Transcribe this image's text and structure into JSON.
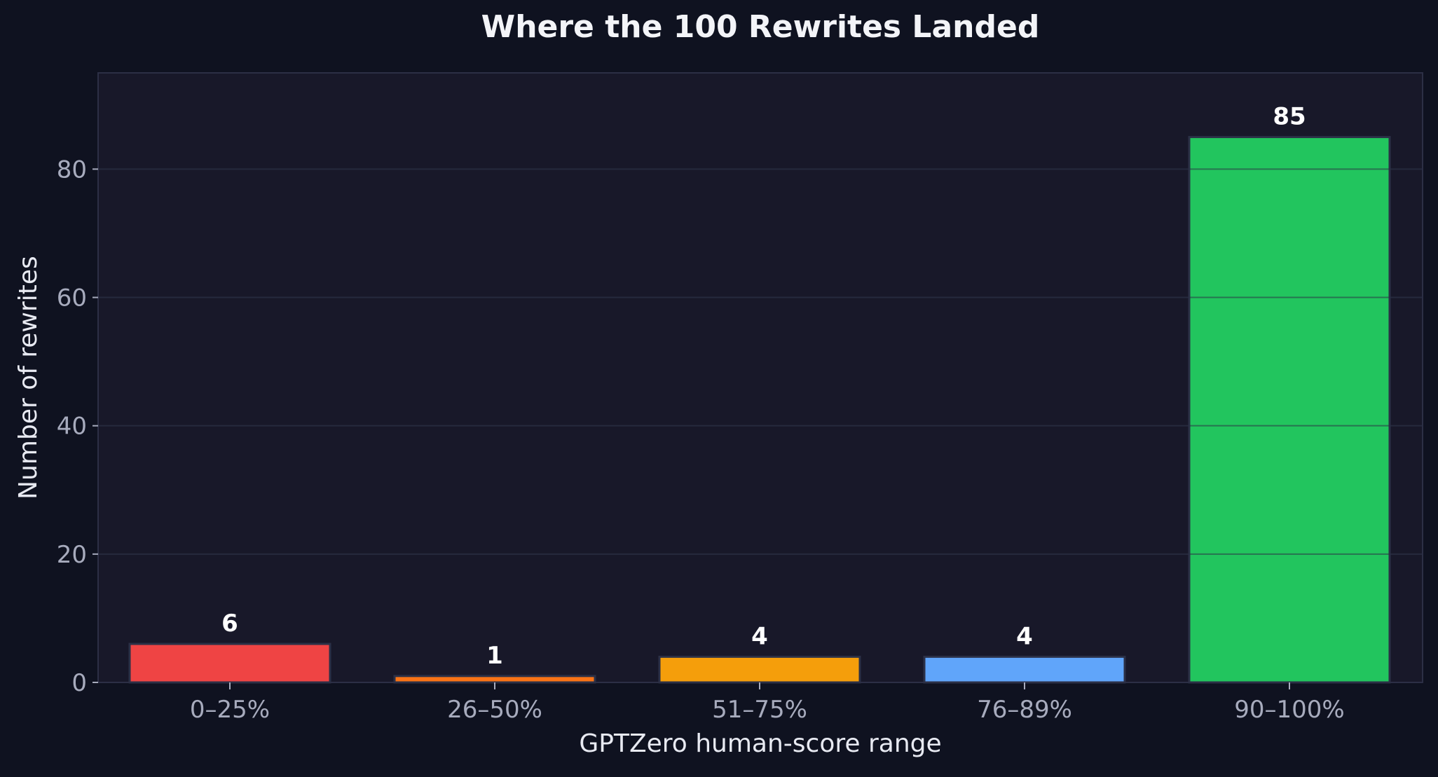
{
  "chart_data": {
    "type": "bar",
    "title": "Where the 100 Rewrites Landed",
    "xlabel": "GPTZero human-score range",
    "ylabel": "Number of rewrites",
    "categories": [
      "0–25%",
      "26–50%",
      "51–75%",
      "76–89%",
      "90–100%"
    ],
    "values": [
      6,
      1,
      4,
      4,
      85
    ],
    "data_labels": [
      "6",
      "1",
      "4",
      "4",
      "85"
    ],
    "bar_colors": [
      "#ef4444",
      "#f97316",
      "#f59e0b",
      "#60a5fa",
      "#22c55e"
    ],
    "ylim": [
      0,
      95
    ],
    "yticks": [
      0,
      20,
      40,
      60,
      80
    ],
    "ytick_labels": [
      "0",
      "20",
      "40",
      "60",
      "80"
    ],
    "grid": true
  },
  "colors": {
    "page_background": "#0f1220",
    "plot_background": "#181829",
    "plot_border": "#2c2f45",
    "grid": "#262a3d",
    "tick_text": "#a7abbd",
    "label_text": "#e8eaf2",
    "title_text": "#f3f4f8",
    "bar_edge": "#2b3046",
    "data_label_text": "#ffffff"
  }
}
